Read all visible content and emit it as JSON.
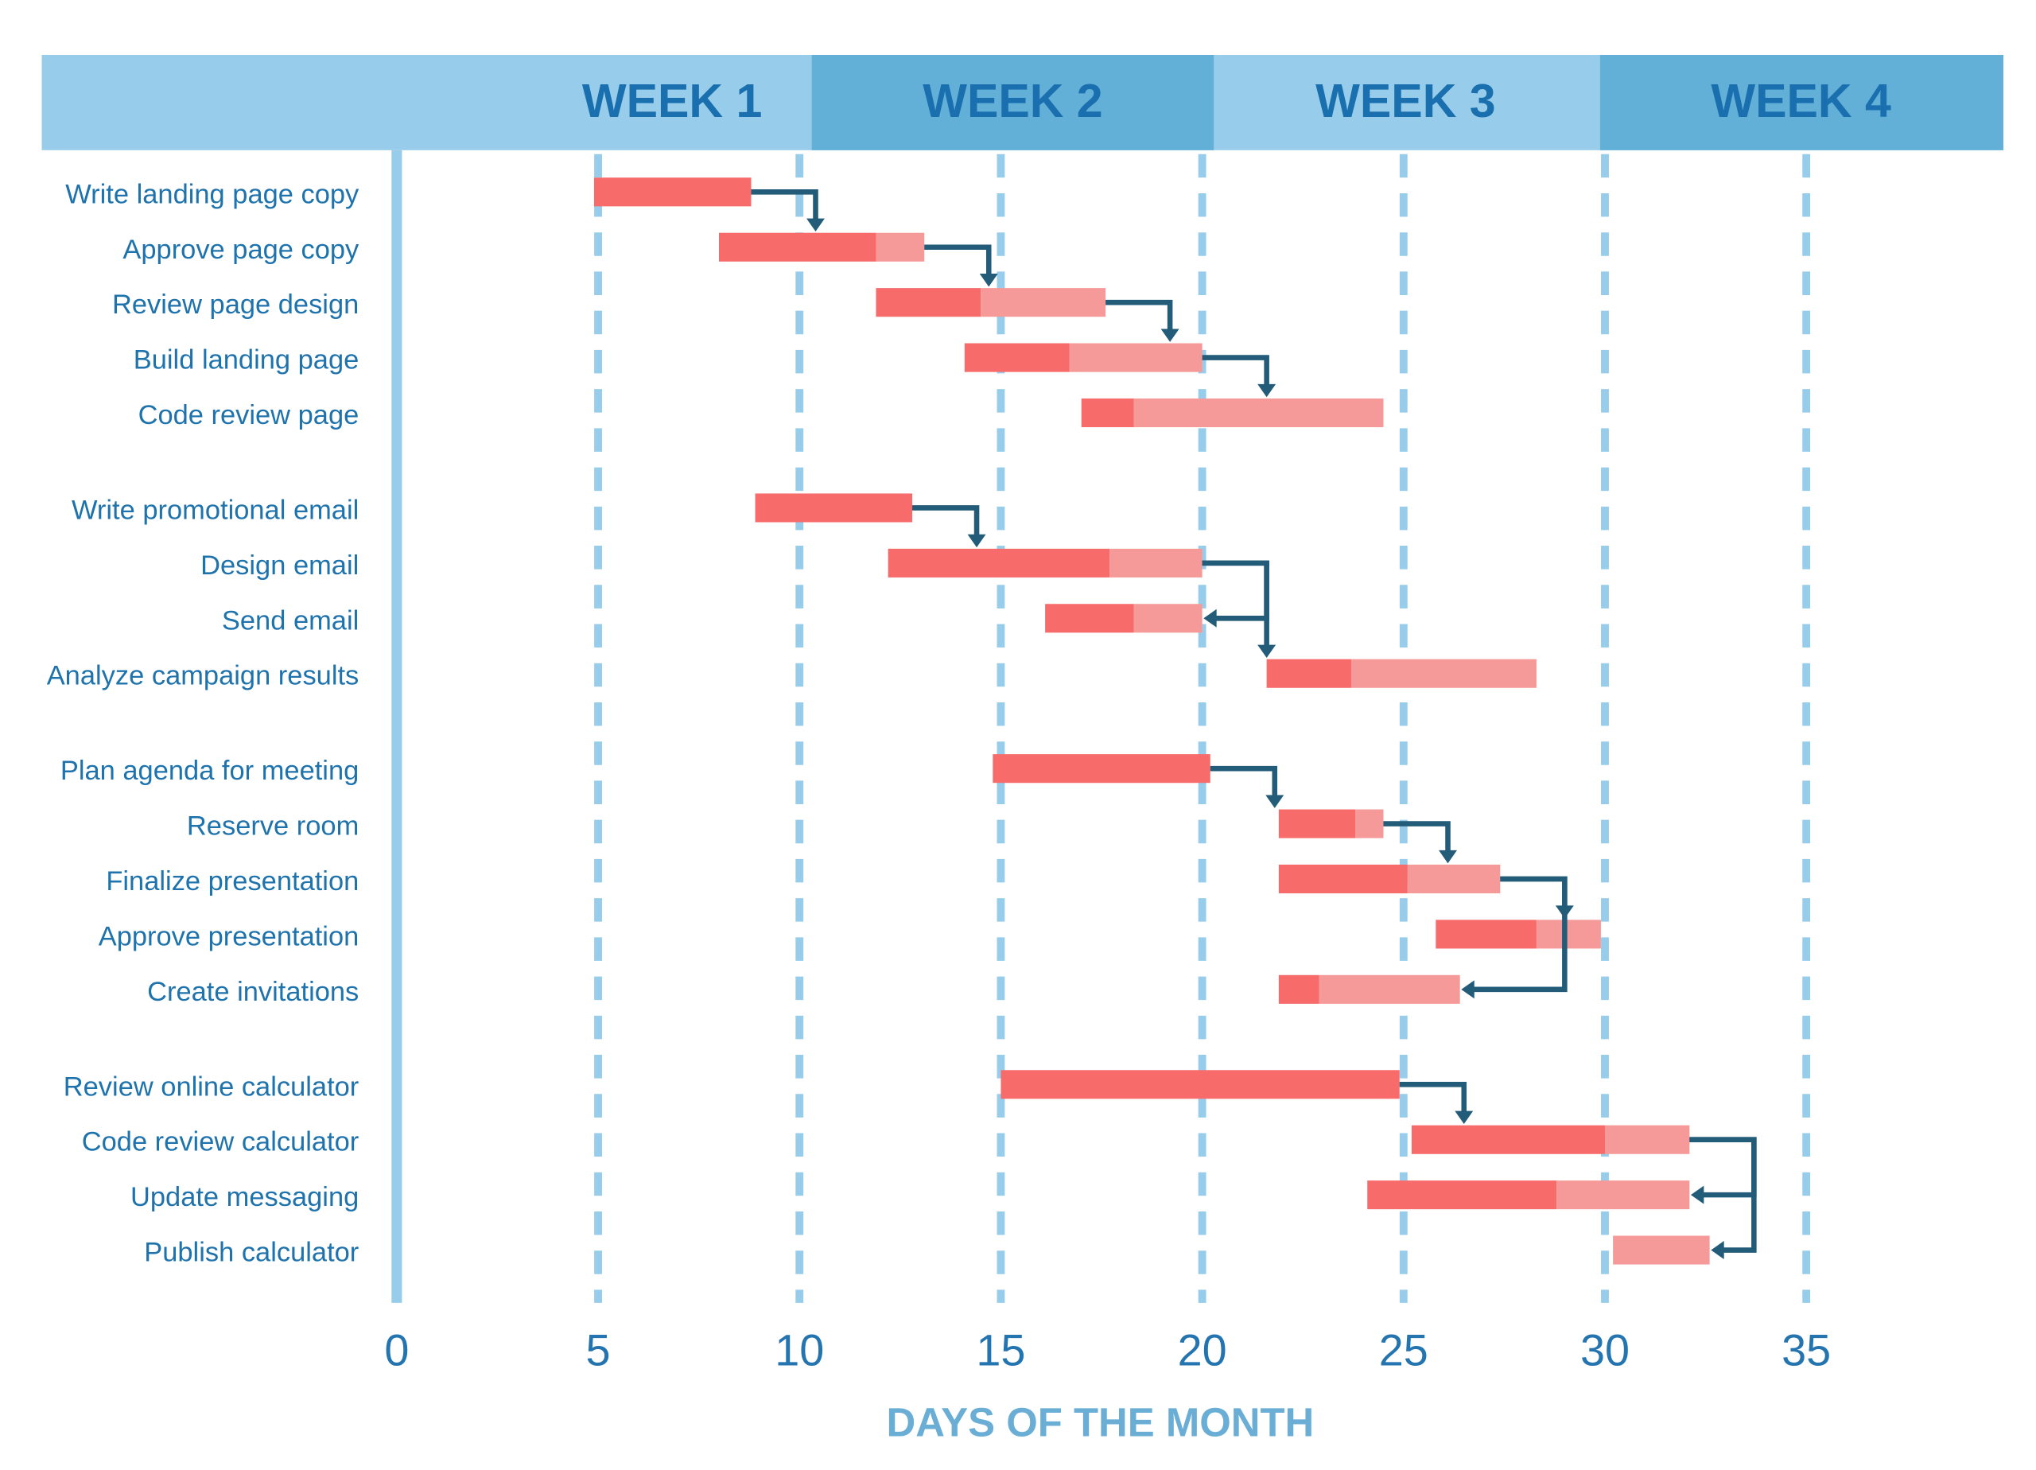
{
  "chart_data": {
    "type": "gantt",
    "weeks": [
      "WEEK 1",
      "WEEK 2",
      "WEEK 3",
      "WEEK 4"
    ],
    "x_label": "DAYS OF THE MONTH",
    "xlim": [
      0,
      35
    ],
    "xticks": [
      0,
      5,
      10,
      15,
      20,
      25,
      30,
      35
    ],
    "grid": true,
    "done_color": "#f76b6b",
    "remaining_color": "#f59a98",
    "link_color": "#235c78",
    "groups": [
      {
        "categories": [
          "Write landing page copy",
          "Approve page copy",
          "Review page design",
          "Build landing page",
          "Code review page"
        ],
        "start": [
          4.9,
          8,
          11.9,
          14.1,
          17
        ],
        "progress": [
          8.8,
          11.9,
          14.5,
          16.7,
          18.3
        ],
        "end": [
          8.8,
          13.1,
          17.6,
          20,
          24.5
        ],
        "links": [
          [
            0,
            1
          ],
          [
            1,
            2
          ],
          [
            2,
            3
          ],
          [
            3,
            4
          ]
        ]
      },
      {
        "categories": [
          "Write promotional email",
          "Design email",
          "Send email",
          "Analyze campaign results"
        ],
        "start": [
          8.9,
          12.2,
          16.1,
          21.6
        ],
        "progress": [
          12.8,
          17.7,
          18.3,
          23.7
        ],
        "end": [
          12.8,
          20,
          20,
          28.3
        ],
        "links": [
          [
            0,
            1
          ],
          [
            1,
            2
          ],
          [
            1,
            3
          ]
        ]
      },
      {
        "categories": [
          "Plan agenda for meeting",
          "Reserve room",
          "Finalize presentation",
          "Approve presentation",
          "Create invitations"
        ],
        "start": [
          14.8,
          21.9,
          21.9,
          25.8,
          21.9
        ],
        "progress": [
          20.2,
          23.8,
          25.1,
          28.3,
          22.9
        ],
        "end": [
          20.2,
          24.5,
          27.4,
          29.9,
          26.4
        ],
        "links": [
          [
            0,
            1
          ],
          [
            1,
            2
          ],
          [
            2,
            3
          ],
          [
            2,
            4
          ]
        ]
      },
      {
        "categories": [
          "Review online calculator",
          "Code review calculator",
          "Update messaging",
          "Publish calculator"
        ],
        "start": [
          15,
          25.2,
          24.1,
          30.2
        ],
        "progress": [
          24.9,
          30,
          28.8,
          30.2
        ],
        "end": [
          24.9,
          32.1,
          32.1,
          32.6
        ],
        "links": [
          [
            0,
            1
          ],
          [
            1,
            2
          ],
          [
            1,
            3
          ]
        ]
      }
    ]
  }
}
